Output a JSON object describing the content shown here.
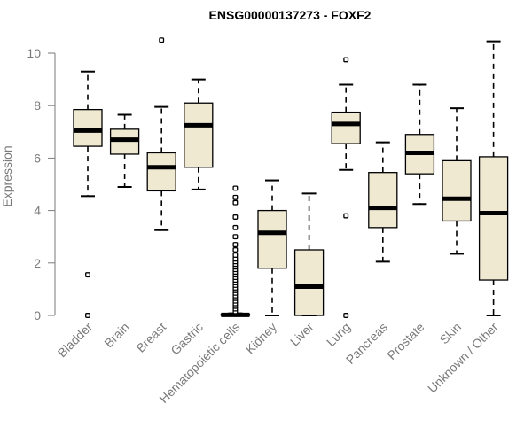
{
  "chart_data": {
    "type": "boxplot",
    "title": "ENSG00000137273 - FOXF2",
    "xlabel": "",
    "ylabel": "Expression",
    "ylim": [
      0,
      10.5
    ],
    "yticks": [
      0,
      2,
      4,
      6,
      8,
      10
    ],
    "box_color": "#efe9d2",
    "categories": [
      "Bladder",
      "Brain",
      "Breast",
      "Gastric",
      "Hematopoietic cells",
      "Kidney",
      "Liver",
      "Lung",
      "Pancreas",
      "Prostate",
      "Skin",
      "Unknown / Other"
    ],
    "boxes": [
      {
        "name": "Bladder",
        "min": 4.55,
        "q1": 6.45,
        "median": 7.05,
        "q3": 7.85,
        "max": 9.3,
        "outliers": [
          1.55,
          0.0
        ]
      },
      {
        "name": "Brain",
        "min": 4.9,
        "q1": 6.15,
        "median": 6.7,
        "q3": 7.1,
        "max": 7.65,
        "outliers": []
      },
      {
        "name": "Breast",
        "min": 3.25,
        "q1": 4.75,
        "median": 5.65,
        "q3": 6.2,
        "max": 7.95,
        "outliers": [
          10.5
        ]
      },
      {
        "name": "Gastric",
        "min": 4.8,
        "q1": 5.65,
        "median": 7.25,
        "q3": 8.1,
        "max": 9.0,
        "outliers": []
      },
      {
        "name": "Hematopoietic cells",
        "min": 0.0,
        "q1": 0.0,
        "median": 0.02,
        "q3": 0.05,
        "max": 0.08,
        "outliers": [
          0.15,
          0.25,
          0.35,
          0.45,
          0.55,
          0.65,
          0.75,
          0.85,
          0.95,
          1.05,
          1.15,
          1.25,
          1.35,
          1.45,
          1.55,
          1.65,
          1.75,
          1.85,
          1.95,
          2.05,
          2.15,
          2.3,
          2.5,
          2.7,
          3.0,
          3.35,
          3.75,
          4.3,
          4.5,
          4.85
        ]
      },
      {
        "name": "Kidney",
        "min": 0.0,
        "q1": 1.8,
        "median": 3.15,
        "q3": 4.0,
        "max": 5.15,
        "outliers": []
      },
      {
        "name": "Liver",
        "min": 0.0,
        "q1": 0.0,
        "median": 1.1,
        "q3": 2.5,
        "max": 4.65,
        "outliers": []
      },
      {
        "name": "Lung",
        "min": 5.55,
        "q1": 6.55,
        "median": 7.3,
        "q3": 7.75,
        "max": 8.8,
        "outliers": [
          9.75,
          3.8,
          0.0
        ]
      },
      {
        "name": "Pancreas",
        "min": 2.05,
        "q1": 3.35,
        "median": 4.1,
        "q3": 5.45,
        "max": 6.6,
        "outliers": []
      },
      {
        "name": "Prostate",
        "min": 4.25,
        "q1": 5.4,
        "median": 6.2,
        "q3": 6.9,
        "max": 8.8,
        "outliers": []
      },
      {
        "name": "Skin",
        "min": 2.35,
        "q1": 3.6,
        "median": 4.45,
        "q3": 5.9,
        "max": 7.9,
        "outliers": []
      },
      {
        "name": "Unknown / Other",
        "min": 0.0,
        "q1": 1.35,
        "median": 3.9,
        "q3": 6.05,
        "max": 10.45,
        "outliers": []
      }
    ]
  }
}
